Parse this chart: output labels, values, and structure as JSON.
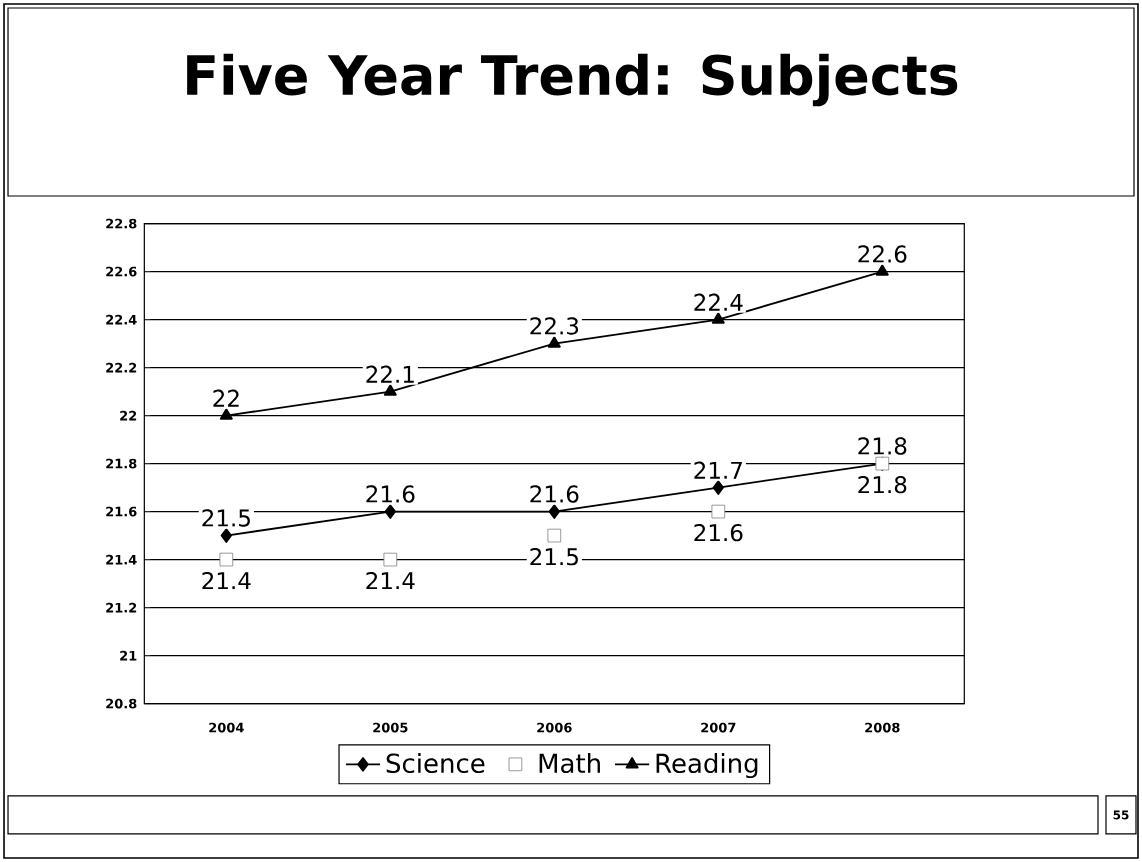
{
  "chart_data": {
    "type": "line",
    "title": "Five Year Trend:  Subjects",
    "categories": [
      "2004",
      "2005",
      "2006",
      "2007",
      "2008"
    ],
    "series": [
      {
        "name": "Science",
        "color": "#000000",
        "marker": "diamond",
        "values": [
          21.5,
          21.6,
          21.6,
          21.7,
          21.8
        ]
      },
      {
        "name": "Math",
        "type": "scatter",
        "color": "#ffffff",
        "marker": "square",
        "values": [
          21.4,
          21.4,
          21.5,
          21.6,
          21.8
        ]
      },
      {
        "name": "Reading",
        "color": "#000000",
        "marker": "triangle",
        "values": [
          22,
          22.1,
          22.3,
          22.4,
          22.6
        ]
      }
    ],
    "ylim": [
      20.8,
      22.8
    ],
    "yticks": [
      20.8,
      21,
      21.2,
      21.4,
      21.6,
      21.8,
      22,
      22.2,
      22.4,
      22.6,
      22.8
    ],
    "grid": "y",
    "legend": "bottom",
    "data_labels": true,
    "line_style": "solid",
    "annotations": [
      "55"
    ]
  }
}
